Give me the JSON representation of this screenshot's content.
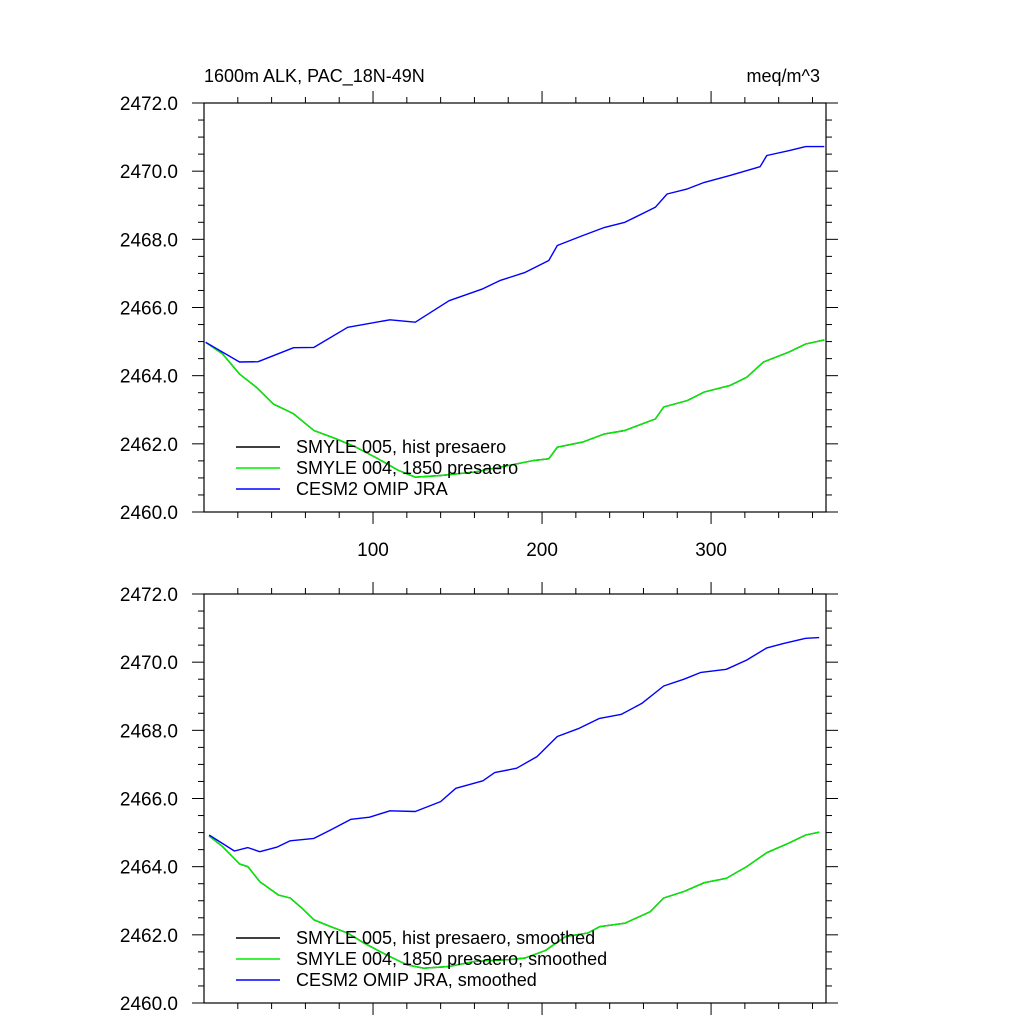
{
  "chart_data": [
    {
      "type": "line",
      "title": "1600m ALK, PAC_18N-49N",
      "units_label": "meq/m^3",
      "xlabel": "",
      "ylabel": "",
      "xlim": [
        0,
        368
      ],
      "ylim": [
        2460,
        2472
      ],
      "xticks": [
        100,
        200,
        300
      ],
      "xtick_labels": [
        "100",
        "200",
        "300"
      ],
      "yticks": [
        2460,
        2462,
        2464,
        2466,
        2468,
        2470,
        2472
      ],
      "ytick_labels": [
        "2460.0",
        "2462.0",
        "2464.0",
        "2466.0",
        "2468.0",
        "2470.0",
        "2472.0"
      ],
      "grid": false,
      "legend_position": "bottom-left",
      "series": [
        {
          "name": "SMYLE 005, hist presaero",
          "color": "#000000",
          "x": [
            1,
            11,
            21,
            31,
            41,
            53,
            65,
            78,
            90,
            103,
            115,
            125,
            140,
            160,
            180,
            195,
            204,
            209,
            224,
            237,
            249,
            267,
            272,
            286,
            296,
            311,
            321,
            331,
            346,
            356,
            367
          ],
          "y": [
            2464.98,
            2464.64,
            2464.05,
            2463.66,
            2463.17,
            2462.88,
            2462.39,
            2462.15,
            2461.9,
            2461.56,
            2461.22,
            2461.02,
            2461.07,
            2461.17,
            2461.36,
            2461.51,
            2461.56,
            2461.9,
            2462.05,
            2462.29,
            2462.39,
            2462.73,
            2463.08,
            2463.27,
            2463.52,
            2463.71,
            2463.95,
            2464.4,
            2464.69,
            2464.93,
            2465.05
          ]
        },
        {
          "name": "SMYLE 004, 1850 presaero",
          "color": "#00ee00",
          "x": [
            1,
            11,
            21,
            31,
            41,
            53,
            65,
            78,
            90,
            103,
            115,
            125,
            140,
            160,
            180,
            195,
            204,
            209,
            224,
            237,
            249,
            267,
            272,
            286,
            296,
            311,
            321,
            331,
            346,
            356,
            367
          ],
          "y": [
            2464.98,
            2464.64,
            2464.05,
            2463.66,
            2463.17,
            2462.88,
            2462.39,
            2462.15,
            2461.9,
            2461.56,
            2461.22,
            2461.02,
            2461.07,
            2461.17,
            2461.36,
            2461.51,
            2461.56,
            2461.9,
            2462.05,
            2462.29,
            2462.39,
            2462.73,
            2463.08,
            2463.27,
            2463.52,
            2463.71,
            2463.95,
            2464.4,
            2464.69,
            2464.93,
            2465.05
          ]
        },
        {
          "name": "CESM2 OMIP JRA",
          "color": "#0000ff",
          "x": [
            1,
            21,
            32,
            53,
            65,
            85,
            110,
            125,
            145,
            165,
            175,
            190,
            204,
            209,
            224,
            237,
            249,
            267,
            274,
            286,
            296,
            311,
            329,
            333,
            346,
            356,
            367
          ],
          "y": [
            2464.98,
            2464.4,
            2464.41,
            2464.82,
            2464.83,
            2465.42,
            2465.64,
            2465.57,
            2466.2,
            2466.55,
            2466.79,
            2467.03,
            2467.38,
            2467.82,
            2468.11,
            2468.35,
            2468.5,
            2468.94,
            2469.33,
            2469.48,
            2469.67,
            2469.87,
            2470.13,
            2470.46,
            2470.6,
            2470.72,
            2470.72
          ]
        }
      ]
    },
    {
      "type": "line",
      "xlim": [
        0,
        368
      ],
      "ylim": [
        2460,
        2472
      ],
      "xticks": [
        100,
        200,
        300
      ],
      "yticks": [
        2460,
        2462,
        2464,
        2466,
        2468,
        2470,
        2472
      ],
      "ytick_labels": [
        "2460.0",
        "2462.0",
        "2464.0",
        "2466.0",
        "2468.0",
        "2470.0",
        "2472.0"
      ],
      "grid": false,
      "legend_position": "bottom-left",
      "series": [
        {
          "name": "SMYLE 005, hist presaero, smoothed",
          "color": "#000000",
          "x": [
            3,
            11,
            21,
            26,
            33,
            44,
            51,
            58,
            65,
            75,
            85,
            95,
            108,
            120,
            130,
            145,
            160,
            180,
            190,
            202,
            214,
            227,
            234,
            249,
            264,
            272,
            284,
            296,
            309,
            321,
            333,
            346,
            356,
            364
          ],
          "y": [
            2464.9,
            2464.59,
            2464.08,
            2464.0,
            2463.56,
            2463.17,
            2463.08,
            2462.78,
            2462.44,
            2462.24,
            2462.05,
            2461.75,
            2461.41,
            2461.12,
            2461.02,
            2461.07,
            2461.22,
            2461.27,
            2461.32,
            2461.54,
            2461.95,
            2462.05,
            2462.24,
            2462.34,
            2462.68,
            2463.08,
            2463.27,
            2463.53,
            2463.66,
            2464.0,
            2464.41,
            2464.69,
            2464.93,
            2465.01
          ]
        },
        {
          "name": "SMYLE 004, 1850 presaero, smoothed",
          "color": "#00ee00",
          "x": [
            3,
            11,
            21,
            26,
            33,
            44,
            51,
            58,
            65,
            75,
            85,
            95,
            108,
            120,
            130,
            145,
            160,
            180,
            190,
            202,
            214,
            227,
            234,
            249,
            264,
            272,
            284,
            296,
            309,
            321,
            333,
            346,
            356,
            364
          ],
          "y": [
            2464.9,
            2464.59,
            2464.08,
            2464.0,
            2463.56,
            2463.17,
            2463.08,
            2462.78,
            2462.44,
            2462.24,
            2462.05,
            2461.75,
            2461.41,
            2461.12,
            2461.02,
            2461.07,
            2461.22,
            2461.27,
            2461.32,
            2461.54,
            2461.95,
            2462.05,
            2462.24,
            2462.34,
            2462.68,
            2463.08,
            2463.27,
            2463.53,
            2463.66,
            2464.0,
            2464.41,
            2464.69,
            2464.93,
            2465.01
          ]
        },
        {
          "name": "CESM2 OMIP JRA, smoothed",
          "color": "#0000ff",
          "x": [
            3,
            18,
            26,
            33,
            43,
            51,
            65,
            75,
            87,
            98,
            110,
            125,
            140,
            149,
            165,
            172,
            185,
            197,
            209,
            222,
            234,
            247,
            259,
            272,
            284,
            294,
            309,
            321,
            333,
            343,
            356,
            364
          ],
          "y": [
            2464.93,
            2464.46,
            2464.56,
            2464.44,
            2464.57,
            2464.76,
            2464.83,
            2465.08,
            2465.39,
            2465.45,
            2465.64,
            2465.62,
            2465.91,
            2466.3,
            2466.52,
            2466.76,
            2466.89,
            2467.23,
            2467.82,
            2468.06,
            2468.35,
            2468.47,
            2468.79,
            2469.3,
            2469.5,
            2469.7,
            2469.79,
            2470.06,
            2470.42,
            2470.55,
            2470.7,
            2470.72
          ]
        }
      ]
    }
  ]
}
